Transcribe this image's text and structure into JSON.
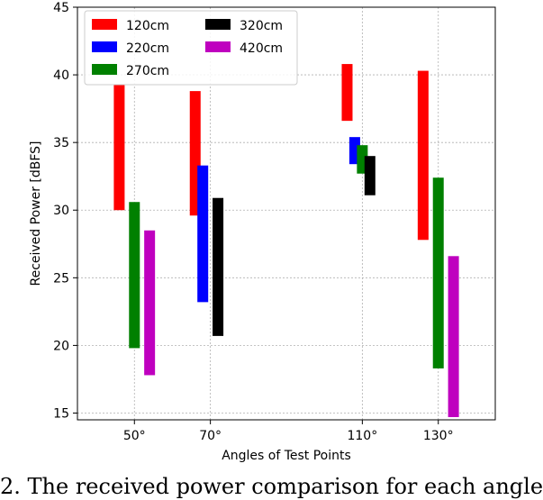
{
  "chart_data": {
    "type": "bar",
    "subtype": "floating-range",
    "xlabel": "Angles of Test Points",
    "ylabel": "Received Power [dBFS]",
    "ylim": [
      14.5,
      45
    ],
    "yticks": [
      15,
      20,
      25,
      30,
      35,
      40,
      45
    ],
    "xlim": [
      35,
      145
    ],
    "xticks": [
      50,
      70,
      110,
      130
    ],
    "xtick_labels": [
      "50°",
      "70°",
      "110°",
      "130°"
    ],
    "grid": true,
    "legend_position": "top-left",
    "series": [
      {
        "name": "120cm",
        "color": "#ff0000",
        "ranges": [
          {
            "x": 46,
            "low": 30.0,
            "high": 39.3
          },
          {
            "x": 66,
            "low": 29.6,
            "high": 38.8
          },
          {
            "x": 106,
            "low": 36.6,
            "high": 40.8
          },
          {
            "x": 126,
            "low": 27.8,
            "high": 40.3
          }
        ]
      },
      {
        "name": "220cm",
        "color": "#0000ff",
        "ranges": [
          {
            "x": 68,
            "low": 23.2,
            "high": 33.3
          },
          {
            "x": 108,
            "low": 33.4,
            "high": 35.4
          }
        ]
      },
      {
        "name": "270cm",
        "color": "#008000",
        "ranges": [
          {
            "x": 50,
            "low": 19.8,
            "high": 30.6
          },
          {
            "x": 110,
            "low": 32.7,
            "high": 34.8
          },
          {
            "x": 130,
            "low": 18.3,
            "high": 32.4
          }
        ]
      },
      {
        "name": "320cm",
        "color": "#000000",
        "ranges": [
          {
            "x": 72,
            "low": 20.7,
            "high": 30.9
          },
          {
            "x": 112,
            "low": 31.1,
            "high": 34.0
          }
        ]
      },
      {
        "name": "420cm",
        "color": "#bf00bf",
        "ranges": [
          {
            "x": 54,
            "low": 17.8,
            "high": 28.5
          },
          {
            "x": 134,
            "low": 14.7,
            "high": 26.6
          }
        ]
      }
    ]
  },
  "caption": "2. The received power comparison for each angle"
}
